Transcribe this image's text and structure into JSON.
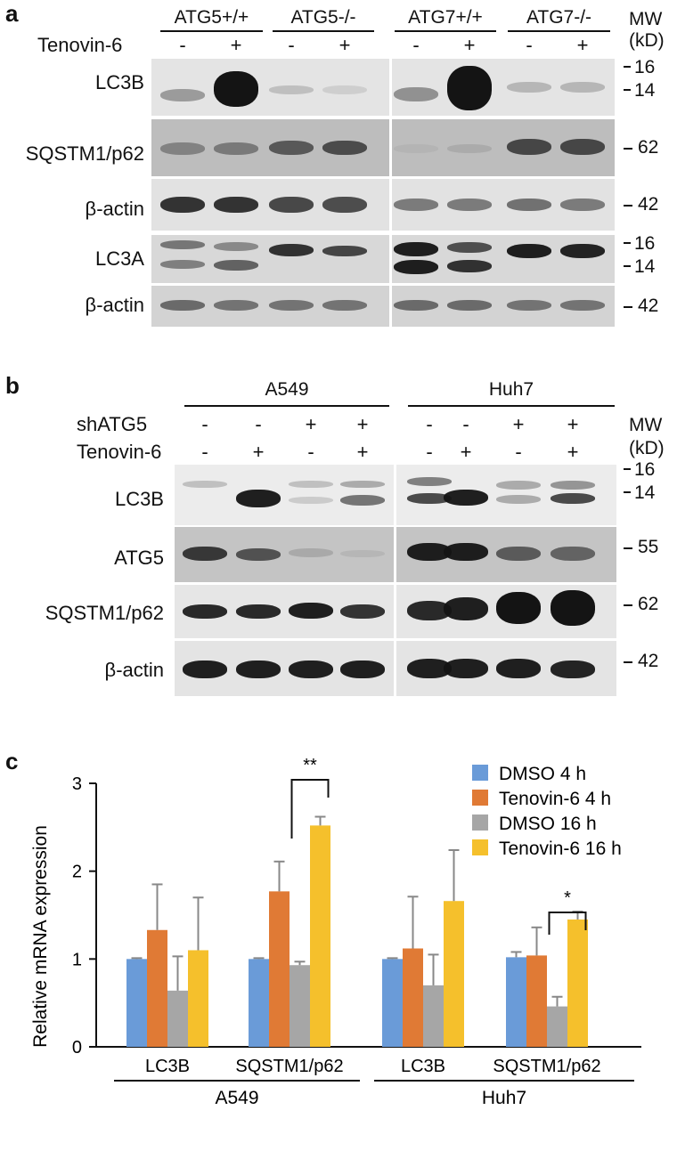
{
  "panel_a": {
    "letter": "a",
    "groups": [
      "ATG5+/+",
      "ATG5-/-",
      "ATG7+/+",
      "ATG7-/-"
    ],
    "treatment_label": "Tenovin-6",
    "treatment_signs": [
      "-",
      "+",
      "-",
      "+",
      "-",
      "+",
      "-",
      "+"
    ],
    "mw_header": [
      "MW",
      "(kD)"
    ],
    "rows": [
      {
        "label": "LC3B",
        "mw": [
          "16",
          "14"
        ]
      },
      {
        "label": "SQSTM1/p62",
        "mw": [
          "62"
        ]
      },
      {
        "label": "β-actin",
        "mw": [
          "42"
        ]
      },
      {
        "label": "LC3A",
        "mw": [
          "16",
          "14"
        ]
      },
      {
        "label": "β-actin",
        "mw": [
          "42"
        ]
      }
    ]
  },
  "panel_b": {
    "letter": "b",
    "groups": [
      "A549",
      "Huh7"
    ],
    "sh_label": "shATG5",
    "sh_signs": [
      "-",
      "-",
      "+",
      "+",
      "-",
      "-",
      "+",
      "+"
    ],
    "treatment_label": "Tenovin-6",
    "treatment_signs": [
      "-",
      "+",
      "-",
      "+",
      "-",
      "+",
      "-",
      "+"
    ],
    "mw_header": [
      "MW",
      "(kD)"
    ],
    "rows": [
      {
        "label": "LC3B",
        "mw": [
          "16",
          "14"
        ]
      },
      {
        "label": "ATG5",
        "mw": [
          "55"
        ]
      },
      {
        "label": "SQSTM1/p62",
        "mw": [
          "62"
        ]
      },
      {
        "label": "β-actin",
        "mw": [
          "42"
        ]
      }
    ]
  },
  "panel_c": {
    "letter": "c",
    "chart_data": {
      "type": "bar",
      "ylabel": "Relative mRNA expression",
      "ylim": [
        0,
        3
      ],
      "yticks": [
        "0",
        "1",
        "2",
        "3"
      ],
      "categories": [
        "LC3B",
        "SQSTM1/p62",
        "LC3B",
        "SQSTM1/p62"
      ],
      "groups": [
        "A549",
        "Huh7"
      ],
      "series": [
        {
          "name": "DMSO 4 h",
          "color": "#6a9bd8",
          "values": [
            1.0,
            1.0,
            1.0,
            1.02
          ],
          "errors": [
            0.01,
            0.01,
            0.01,
            0.06
          ]
        },
        {
          "name": "Tenovin-6 4 h",
          "color": "#e07a35",
          "values": [
            1.33,
            1.77,
            1.12,
            1.04
          ],
          "errors": [
            0.52,
            0.34,
            0.59,
            0.32
          ]
        },
        {
          "name": "DMSO 16 h",
          "color": "#a6a6a6",
          "values": [
            0.64,
            0.93,
            0.7,
            0.46
          ],
          "errors": [
            0.39,
            0.04,
            0.35,
            0.11
          ]
        },
        {
          "name": "Tenovin-6 16 h",
          "color": "#f5c02c",
          "values": [
            1.1,
            2.52,
            1.66,
            1.45
          ],
          "errors": [
            0.6,
            0.1,
            0.58,
            0.09
          ]
        }
      ],
      "significance": [
        {
          "label": "**",
          "category_index": 1
        },
        {
          "label": "*",
          "category_index": 3
        }
      ],
      "legend_position": "top-right",
      "grid": false
    }
  }
}
